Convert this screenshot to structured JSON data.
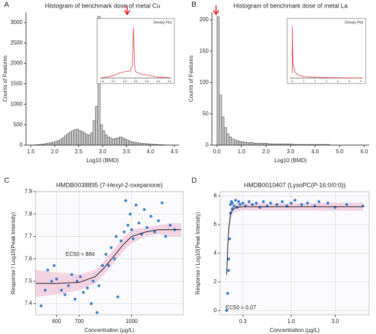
{
  "chart_data": [
    {
      "type": "histogram",
      "panel": "A",
      "title": "Histogram of benchmark dose of metal Cu",
      "x_label": "Log10 (BMD)",
      "y_label": "Counts of Features",
      "color": "#c8c8c8",
      "bins": [
        1.5,
        1.55,
        1.6,
        1.65,
        1.7,
        1.75,
        1.8,
        1.85,
        1.9,
        1.95,
        2.0,
        2.05,
        2.1,
        2.15,
        2.2,
        2.25,
        2.3,
        2.35,
        2.4,
        2.45,
        2.5,
        2.55,
        2.6,
        2.65,
        2.7,
        2.75,
        2.8,
        2.85,
        2.9,
        2.95,
        3.0,
        3.05,
        3.1,
        3.15,
        3.2,
        3.25,
        3.3,
        3.35,
        3.4,
        3.45,
        3.5,
        3.55,
        3.6,
        3.65,
        3.7,
        3.75,
        3.8,
        3.85,
        3.9,
        3.95,
        4.0,
        4.05,
        4.1,
        4.15,
        4.2,
        4.25,
        4.3,
        4.35,
        4.4,
        4.45,
        4.5
      ],
      "values": [
        0,
        5,
        10,
        15,
        20,
        30,
        40,
        50,
        60,
        70,
        90,
        110,
        140,
        180,
        230,
        280,
        320,
        350,
        380,
        390,
        360,
        330,
        300,
        260,
        250,
        300,
        600,
        950,
        3150,
        500,
        350,
        250,
        200,
        170,
        150,
        160,
        180,
        200,
        180,
        150,
        120,
        100,
        80,
        70,
        60,
        50,
        45,
        40,
        35,
        30,
        25,
        20,
        15,
        12,
        10,
        8,
        6,
        5,
        4,
        3
      ],
      "xlim": [
        1.4,
        4.6
      ],
      "xticks": [
        1.5,
        {
          "value": 2.0,
          "label": "2.0"
        },
        2.5,
        {
          "value": 3.0,
          "label": "3.0"
        },
        3.5,
        {
          "value": 4.0,
          "label": "4.0"
        },
        4.5
      ],
      "ylim": [
        0,
        3250
      ],
      "yticks": [
        0,
        500,
        1000,
        1500,
        2000,
        2500,
        3000
      ],
      "inset": {
        "title": "Density Plot",
        "color": "#e03030",
        "x": [
          1.5,
          1.75,
          2.0,
          2.25,
          2.5,
          2.75,
          2.85,
          2.9,
          2.95,
          3.0,
          3.25,
          3.5,
          3.75,
          4.0,
          4.25,
          4.5
        ],
        "values": [
          0.1,
          0.3,
          0.8,
          1.5,
          2,
          2.2,
          4,
          16,
          4,
          2,
          1.2,
          1,
          0.6,
          0.3,
          0.2,
          0.1
        ],
        "xlim": [
          1.4,
          4.6
        ],
        "ylim": [
          0,
          18
        ],
        "xticks": [
          1.5,
          {
            "value": 2.0,
            "label": "2.0"
          },
          2.5,
          {
            "value": 3.0,
            "label": "3.0"
          },
          3.5,
          {
            "value": 4.0,
            "label": "4.0"
          },
          4.5
        ]
      }
    },
    {
      "type": "histogram",
      "panel": "B",
      "title": "Histogram of benchmark dose of metal La",
      "x_label": "Log10 (BMD)",
      "y_label": "Counts of Features",
      "color": "#c8c8c8",
      "bins": [
        0.0,
        0.1,
        0.2,
        0.3,
        0.4,
        0.5,
        0.6,
        0.7,
        0.8,
        0.9,
        1.0,
        1.1,
        1.2,
        1.3,
        1.4,
        1.5,
        1.6,
        1.7,
        1.8,
        1.9,
        2.0,
        2.1,
        2.2,
        2.3,
        2.4,
        2.5,
        2.6,
        2.7,
        2.8,
        2.9,
        3.0,
        3.1,
        3.2,
        3.3,
        3.4,
        3.5,
        3.6,
        3.7,
        3.8,
        3.9,
        4.0,
        4.1,
        4.2,
        4.3,
        4.4,
        4.5,
        4.6,
        4.7,
        4.8,
        4.9,
        5.0,
        5.1,
        5.2,
        5.3,
        5.4,
        5.5,
        5.6,
        5.7,
        5.8,
        5.9,
        6.0
      ],
      "values": [
        205,
        80,
        45,
        28,
        18,
        13,
        10,
        8,
        7,
        6,
        5,
        5,
        4,
        4,
        4,
        3,
        3,
        3,
        3,
        3,
        3,
        2,
        2,
        2,
        2,
        2,
        2,
        2,
        2,
        2,
        2,
        1,
        1,
        1,
        1,
        1,
        1,
        1,
        1,
        1,
        1,
        1,
        1,
        1,
        1,
        1,
        0,
        0,
        0,
        0,
        0,
        0,
        0,
        0,
        0,
        0,
        0,
        0,
        0,
        0
      ],
      "xlim": [
        -0.2,
        6.2
      ],
      "xticks": [
        {
          "value": 0,
          "label": "0.0"
        },
        {
          "value": 1,
          "label": "1.0"
        },
        {
          "value": 2,
          "label": "2.0"
        },
        {
          "value": 3,
          "label": "3.0"
        },
        {
          "value": 4,
          "label": "4.0"
        },
        {
          "value": 5,
          "label": "5.0"
        },
        {
          "value": 6,
          "label": "6.0"
        }
      ],
      "ylim": [
        0,
        212
      ],
      "yticks": [
        0,
        50,
        100,
        150,
        200
      ],
      "inset": {
        "title": "Density Plot",
        "color": "#e03030",
        "x": [
          0,
          0.02,
          0.05,
          0.1,
          0.2,
          0.3,
          0.5,
          1,
          2,
          3,
          4,
          5,
          6
        ],
        "values": [
          2,
          20,
          10,
          5,
          3,
          2,
          1.2,
          0.6,
          0.3,
          0.2,
          0.1,
          0.05,
          0.02
        ],
        "xlim": [
          -0.2,
          6.2
        ],
        "ylim": [
          0,
          22
        ],
        "xticks": [
          0,
          1,
          2,
          3,
          4,
          5,
          6
        ]
      }
    },
    {
      "type": "scatter",
      "panel": "C",
      "title": "HMDB0038895 (7-Hexyl-2-oxepanone)",
      "x_label": "Concentration (µg/L)",
      "y_label": "Response / Log10(Peak Intensity)",
      "annotation": "EC50 = 884",
      "xscale": "log",
      "grid": true,
      "color": "#3a7dc9",
      "fit_color": "#111111",
      "band_color": "#f3c9dc",
      "x": [
        540,
        555,
        565,
        580,
        590,
        600,
        620,
        635,
        650,
        665,
        680,
        690,
        705,
        720,
        740,
        760,
        770,
        790,
        800,
        820,
        840,
        855,
        870,
        890,
        900,
        910,
        930,
        950,
        960,
        975,
        990,
        1000,
        1010,
        1030,
        1050,
        1070,
        1090,
        1110,
        1140,
        1170,
        1200,
        1230,
        1260,
        1300,
        1340
      ],
      "values": [
        7.39,
        7.46,
        7.55,
        7.5,
        7.57,
        7.51,
        7.46,
        7.44,
        7.48,
        7.53,
        7.42,
        7.5,
        7.52,
        7.45,
        7.47,
        7.4,
        7.5,
        7.36,
        7.48,
        7.57,
        7.62,
        7.57,
        7.65,
        7.6,
        7.7,
        7.43,
        7.68,
        7.72,
        7.86,
        7.75,
        7.8,
        7.73,
        7.69,
        7.84,
        7.76,
        7.71,
        7.82,
        7.74,
        7.79,
        7.72,
        7.77,
        7.85,
        7.7,
        7.75,
        7.73
      ],
      "fit": {
        "x": [
          520,
          600,
          700,
          780,
          830,
          884,
          940,
          1000,
          1100,
          1200,
          1300,
          1400
        ],
        "values": [
          7.49,
          7.49,
          7.495,
          7.52,
          7.56,
          7.61,
          7.66,
          7.7,
          7.72,
          7.73,
          7.73,
          7.73
        ]
      },
      "band": {
        "x": [
          520,
          600,
          700,
          780,
          830,
          884,
          940,
          1000,
          1100,
          1200,
          1300,
          1400
        ],
        "lower": [
          7.43,
          7.44,
          7.46,
          7.49,
          7.53,
          7.58,
          7.63,
          7.67,
          7.7,
          7.71,
          7.7,
          7.7
        ],
        "upper": [
          7.55,
          7.54,
          7.53,
          7.55,
          7.59,
          7.64,
          7.69,
          7.73,
          7.74,
          7.75,
          7.76,
          7.76
        ]
      },
      "xlim": [
        520,
        1420
      ],
      "xticks": [
        600,
        700,
        1000
      ],
      "ylim": [
        7.35,
        7.9
      ],
      "yticks": [
        7.4,
        7.5,
        7.6,
        7.7,
        7.8,
        7.9
      ]
    },
    {
      "type": "scatter",
      "panel": "D",
      "title": "HMDB0010407 (LysoPC(P-16:0/0:0))",
      "x_label": "Concentration (µg/L)",
      "y_label": "Response / Log10(Peak Intensity)",
      "annotation": "EC50 = 0.07",
      "xscale": "log",
      "grid": true,
      "color": "#3a7dc9",
      "fit_color": "#111111",
      "band_color": "#f3c9dc",
      "x": [
        0.2,
        0.205,
        0.21,
        0.21,
        0.215,
        0.22,
        0.22,
        0.225,
        0.23,
        0.23,
        0.24,
        0.25,
        0.26,
        0.27,
        0.28,
        0.3,
        0.32,
        0.35,
        0.38,
        0.42,
        0.46,
        0.5,
        0.55,
        0.6,
        0.7,
        0.8,
        0.9,
        1.0,
        1.1,
        1.3,
        1.5,
        1.8,
        2.0,
        2.5,
        3.0,
        4.0,
        6.0
      ],
      "values": [
        0.0,
        1.2,
        2.8,
        3.6,
        5.0,
        6.8,
        7.4,
        7.6,
        7.1,
        7.5,
        7.3,
        7.7,
        7.2,
        7.6,
        7.4,
        7.5,
        7.3,
        7.6,
        7.4,
        7.5,
        7.2,
        7.6,
        7.3,
        7.5,
        7.4,
        7.6,
        7.3,
        7.5,
        7.7,
        7.4,
        7.5,
        7.3,
        7.6,
        7.5,
        7.2,
        7.4,
        7.3
      ],
      "fit": {
        "x": [
          0.2,
          0.205,
          0.21,
          0.22,
          0.23,
          0.25,
          0.3,
          1,
          6
        ],
        "values": [
          2.5,
          4.2,
          5.6,
          6.7,
          7.0,
          7.2,
          7.25,
          7.25,
          7.25
        ]
      },
      "band": {
        "x": [
          0.2,
          0.205,
          0.21,
          0.22,
          0.23,
          0.25,
          0.3,
          1,
          6
        ],
        "lower": [
          2.0,
          3.7,
          5.1,
          6.3,
          6.7,
          6.9,
          7.0,
          7.0,
          6.95
        ],
        "upper": [
          3.0,
          4.7,
          6.1,
          7.1,
          7.3,
          7.5,
          7.5,
          7.5,
          7.55
        ]
      },
      "xlim": [
        0.17,
        7.0
      ],
      "xticks": [
        0.3,
        {
          "value": 1.0,
          "label": "1.0"
        },
        {
          "value": 3.0,
          "label": "3.0"
        }
      ],
      "ylim": [
        -0.3,
        8.3
      ],
      "yticks": [
        0,
        2,
        4,
        6,
        8
      ]
    }
  ]
}
